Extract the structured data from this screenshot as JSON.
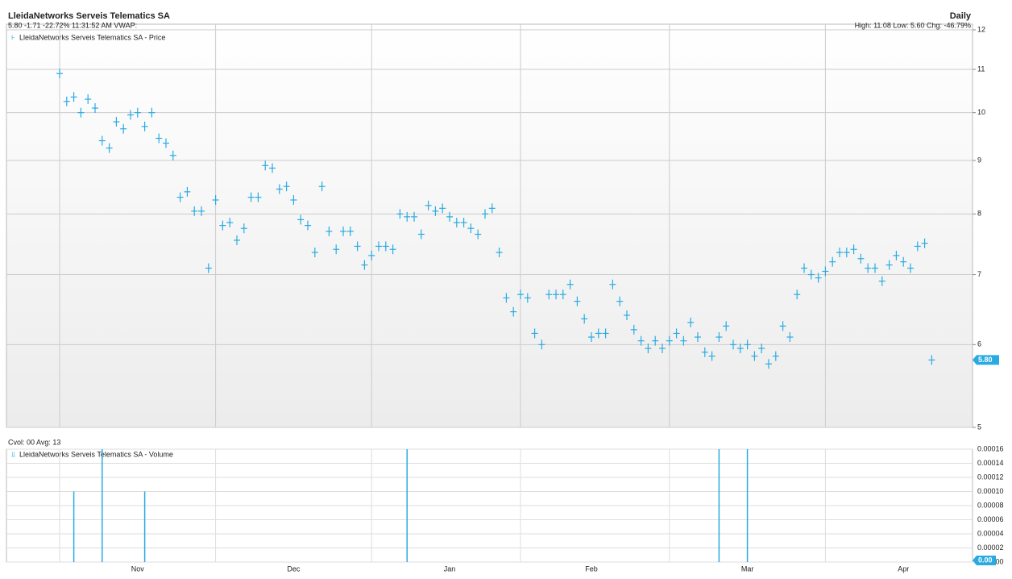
{
  "chart_data": {
    "type": "ohlc",
    "title": "LleidaNetworks Serveis Telematics SA",
    "subtitle": "5.80 -1.71 -22.72% 11:31:52 AM VWAP:",
    "interval": "Daily",
    "summary": "High: 11.08 Low: 5.60 Chg: -46.79%",
    "color": "#29abe2",
    "log_scale": true,
    "grid": true,
    "categories": [
      null,
      null,
      null,
      null,
      null,
      null,
      null,
      null,
      null,
      null,
      null,
      "Nov",
      null,
      null,
      null,
      null,
      null,
      null,
      null,
      null,
      null,
      null,
      null,
      null,
      null,
      null,
      null,
      null,
      null,
      null,
      null,
      null,
      null,
      "Dec",
      null,
      null,
      null,
      null,
      null,
      null,
      null,
      null,
      null,
      null,
      null,
      null,
      null,
      null,
      null,
      null,
      null,
      null,
      null,
      null,
      null,
      "Jan",
      null,
      null,
      null,
      null,
      null,
      null,
      null,
      null,
      null,
      null,
      null,
      null,
      null,
      null,
      null,
      null,
      null,
      null,
      null,
      "Feb",
      null,
      null,
      null,
      null,
      null,
      null,
      null,
      null,
      null,
      null,
      null,
      null,
      null,
      null,
      null,
      null,
      null,
      null,
      null,
      null,
      null,
      "Mar",
      null,
      null,
      null,
      null,
      null,
      null,
      null,
      null,
      null,
      null,
      null,
      null,
      null,
      null,
      null,
      null,
      null,
      null,
      null,
      null,
      null,
      "Apr",
      null,
      null,
      null,
      null
    ],
    "price": {
      "name": "LleidaNetworks Serveis Telematics SA - Price",
      "values": [
        10.9,
        10.25,
        10.35,
        10.0,
        10.3,
        10.1,
        9.4,
        9.25,
        9.8,
        9.65,
        9.95,
        10.0,
        9.7,
        10.0,
        9.45,
        9.35,
        9.1,
        8.3,
        8.4,
        8.05,
        8.05,
        7.1,
        8.25,
        7.8,
        7.85,
        7.55,
        7.75,
        8.3,
        8.3,
        8.9,
        8.85,
        8.45,
        8.5,
        8.25,
        7.9,
        7.8,
        7.35,
        8.5,
        7.7,
        7.4,
        7.7,
        7.7,
        7.45,
        7.15,
        7.3,
        7.45,
        7.45,
        7.4,
        8.0,
        7.95,
        7.95,
        7.65,
        8.15,
        8.05,
        8.1,
        7.95,
        7.85,
        7.85,
        7.75,
        7.65,
        8.0,
        8.1,
        7.35,
        6.65,
        6.45,
        6.7,
        6.65,
        6.15,
        6.0,
        6.7,
        6.7,
        6.7,
        6.85,
        6.6,
        6.35,
        6.1,
        6.15,
        6.15,
        6.85,
        6.6,
        6.4,
        6.2,
        6.05,
        5.95,
        6.05,
        5.95,
        6.05,
        6.15,
        6.05,
        6.3,
        6.1,
        5.9,
        5.85,
        6.1,
        6.25,
        6.0,
        5.95,
        6.0,
        5.85,
        5.95,
        5.75,
        5.85,
        6.25,
        6.1,
        6.7,
        7.1,
        7.0,
        6.95,
        7.05,
        7.2,
        7.35,
        7.35,
        7.4,
        7.25,
        7.1,
        7.1,
        6.9,
        7.15,
        7.3,
        7.2,
        7.1,
        7.45,
        7.5,
        5.8
      ],
      "last_label": "5.80"
    },
    "ylim": [
      5,
      12
    ],
    "yticks": [
      5,
      6,
      7,
      8,
      9,
      10,
      11,
      12
    ],
    "volume": {
      "title": "Cvol: 00 Avg: 13",
      "name": "LleidaNetworks Serveis Telematics SA - Volume",
      "values": [
        0,
        0,
        0.0001,
        0,
        0,
        0,
        0.00016,
        0,
        0,
        0,
        0,
        0,
        0.0001,
        0,
        0,
        0,
        0,
        0,
        0,
        0,
        0,
        0,
        0,
        0,
        0,
        0,
        0,
        0,
        0,
        0,
        0,
        0,
        0,
        0,
        0,
        0,
        0,
        0,
        0,
        0,
        0,
        0,
        0,
        0,
        0,
        0,
        0,
        0,
        0,
        0.00016,
        0,
        0,
        0,
        0,
        0,
        0,
        0,
        0,
        0,
        0,
        0,
        0,
        0,
        0,
        0,
        0,
        0,
        0,
        0,
        0,
        0,
        0,
        0,
        0,
        0,
        0,
        0,
        0,
        0,
        0,
        0,
        0,
        0,
        0,
        0,
        0,
        0,
        0,
        0,
        0,
        0,
        0,
        0,
        0.00016,
        0,
        0,
        0,
        0.00016,
        0,
        0,
        0,
        0,
        0,
        0,
        0,
        0,
        0,
        0,
        0,
        0,
        0,
        0,
        0,
        0,
        0,
        0,
        0,
        0,
        0,
        0,
        0,
        0,
        0,
        0
      ],
      "last_label": "0.00",
      "ylim": [
        0,
        0.00016
      ],
      "yticks": [
        {
          "value": 0,
          "label": "0.00000"
        },
        2e-05,
        4e-05,
        6e-05,
        8e-05,
        {
          "value": 0.0001,
          "label": "0.00010"
        },
        0.00012,
        0.00014,
        0.00016
      ]
    }
  }
}
